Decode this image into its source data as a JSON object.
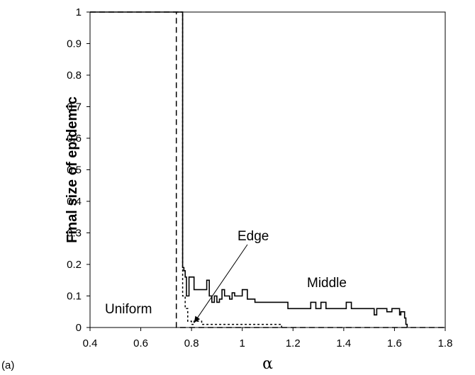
{
  "chart_data": {
    "type": "line",
    "panel_label": "(a)",
    "xlabel": "α",
    "ylabel": "Final size of epidemic",
    "xlim": [
      0.4,
      1.8
    ],
    "ylim": [
      0,
      1
    ],
    "xticks": [
      "0.4",
      "0.6",
      "0.8",
      "1",
      "1.2",
      "1.4",
      "1.6",
      "1.8"
    ],
    "yticks": [
      "0",
      "0.1",
      "0.2",
      "0.3",
      "0.4",
      "0.5",
      "0.6",
      "0.7",
      "0.8",
      "0.9",
      "1"
    ],
    "grid": false,
    "legend": "none",
    "series": [
      {
        "name": "Uniform",
        "style": "dashed",
        "x": [
          0.4,
          0.74,
          0.74,
          1.8
        ],
        "y": [
          1,
          1,
          0,
          0
        ]
      },
      {
        "name": "Edge",
        "style": "dotted",
        "x": [
          0.74,
          0.765,
          0.765,
          0.775,
          0.775,
          0.785,
          0.785,
          0.8,
          0.8,
          0.81,
          0.81,
          0.84,
          0.84,
          0.86,
          0.86,
          1.155,
          1.155
        ],
        "y": [
          1,
          1,
          0.1,
          0.1,
          0.06,
          0.06,
          0.02,
          0.02,
          0.01,
          0.01,
          0.02,
          0.02,
          0.01,
          0.01,
          0.01,
          0.01,
          0
        ]
      },
      {
        "name": "Middle",
        "style": "solid",
        "x": [
          0.4,
          0.765,
          0.765,
          0.77,
          0.77,
          0.775,
          0.775,
          0.78,
          0.78,
          0.79,
          0.79,
          0.81,
          0.81,
          0.86,
          0.86,
          0.87,
          0.87,
          0.88,
          0.88,
          0.89,
          0.89,
          0.9,
          0.9,
          0.91,
          0.91,
          0.92,
          0.92,
          0.93,
          0.93,
          0.95,
          0.95,
          0.96,
          0.96,
          0.97,
          0.97,
          1.0,
          1.0,
          1.02,
          1.02,
          1.05,
          1.05,
          1.18,
          1.18,
          1.27,
          1.27,
          1.29,
          1.29,
          1.31,
          1.31,
          1.33,
          1.33,
          1.41,
          1.41,
          1.43,
          1.43,
          1.52,
          1.52,
          1.53,
          1.53,
          1.57,
          1.57,
          1.59,
          1.59,
          1.62,
          1.62,
          1.625,
          1.625,
          1.64,
          1.64,
          1.645,
          1.645,
          1.65,
          1.65
        ],
        "y": [
          1,
          1,
          0.19,
          0.19,
          0.18,
          0.18,
          0.16,
          0.16,
          0.1,
          0.1,
          0.16,
          0.16,
          0.12,
          0.12,
          0.15,
          0.15,
          0.1,
          0.1,
          0.08,
          0.08,
          0.1,
          0.1,
          0.08,
          0.08,
          0.09,
          0.09,
          0.12,
          0.12,
          0.1,
          0.1,
          0.09,
          0.09,
          0.11,
          0.11,
          0.1,
          0.1,
          0.12,
          0.12,
          0.09,
          0.09,
          0.08,
          0.08,
          0.06,
          0.06,
          0.08,
          0.08,
          0.06,
          0.06,
          0.08,
          0.08,
          0.06,
          0.06,
          0.08,
          0.08,
          0.06,
          0.06,
          0.04,
          0.04,
          0.06,
          0.06,
          0.05,
          0.05,
          0.06,
          0.06,
          0.04,
          0.04,
          0.05,
          0.05,
          0.03,
          0.03,
          0.01,
          0.01,
          0
        ]
      }
    ],
    "annotations": {
      "uniform": "Uniform",
      "edge": "Edge",
      "middle": "Middle"
    }
  }
}
